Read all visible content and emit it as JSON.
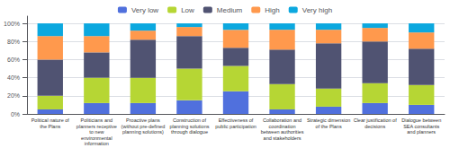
{
  "chart_data": {
    "type": "bar",
    "stacked": true,
    "grid": true,
    "legend": "top",
    "categories": [
      "Political nature of\nthe Plans",
      "Politicians and\nplanners receptive\nto new\nenvironmental\ninformation",
      "Proactive plans\n(without pre-defined\nplanning solutions)",
      "Construction of\nplanning solutions\nthrough dialogue",
      "Effectiveness of\npublic participation",
      "Collaboration and\ncoordination\nbetween authorities\nand stakeholders",
      "Strategic dimension\nof the Plans",
      "Clear justification of\ndecisions",
      "Dialogue between\nSEA consultants\nand planners"
    ],
    "series": [
      {
        "name": "Very low",
        "values": [
          5,
          12,
          12,
          15,
          25,
          5,
          8,
          12,
          10
        ]
      },
      {
        "name": "Low",
        "values": [
          15,
          28,
          28,
          35,
          28,
          28,
          20,
          22,
          22
        ]
      },
      {
        "name": "Medium",
        "values": [
          40,
          28,
          42,
          36,
          20,
          38,
          50,
          46,
          40
        ]
      },
      {
        "name": "High",
        "values": [
          26,
          18,
          10,
          10,
          20,
          22,
          15,
          15,
          18
        ]
      },
      {
        "name": "Very high",
        "values": [
          14,
          14,
          8,
          4,
          7,
          7,
          7,
          5,
          10
        ]
      }
    ],
    "ylim": [
      0,
      108
    ],
    "yticks": [
      {
        "value": 0,
        "label": "0%"
      },
      {
        "value": 20,
        "label": "20%"
      },
      {
        "value": 40,
        "label": "40%"
      },
      {
        "value": 60,
        "label": "60%"
      },
      {
        "value": 80,
        "label": "80%"
      },
      {
        "value": 100,
        "label": "100%"
      }
    ]
  }
}
